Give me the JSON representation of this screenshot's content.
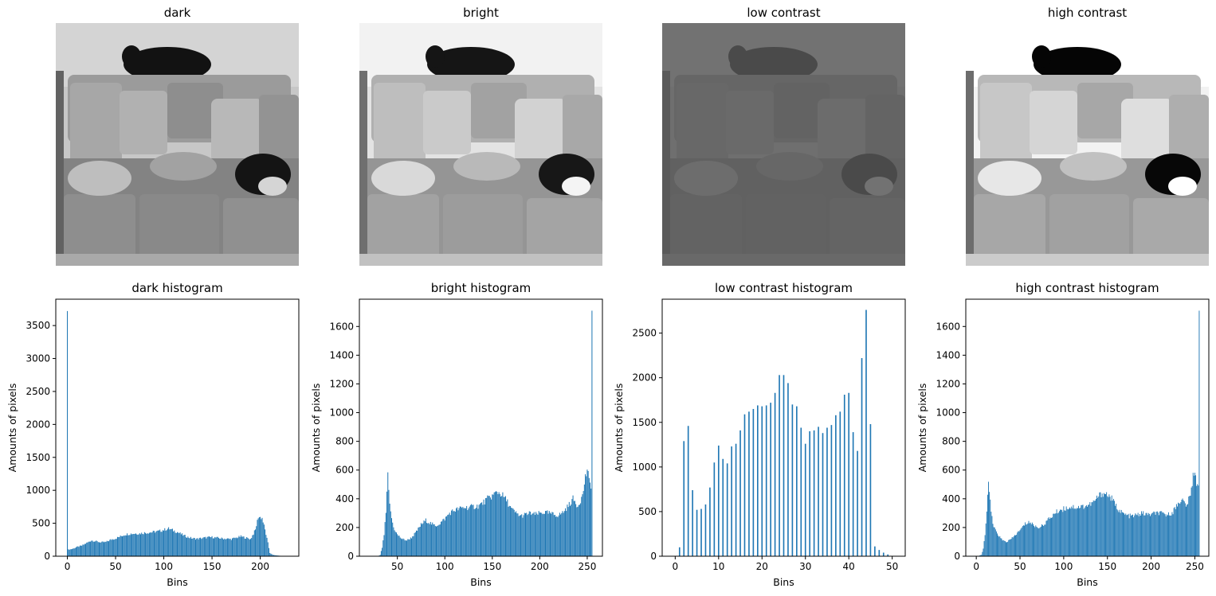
{
  "chart_data": [
    {
      "type": "image",
      "title": "dark",
      "tone": {
        "bright": 0.92,
        "contrast": 1.0
      }
    },
    {
      "type": "image",
      "title": "bright",
      "tone": {
        "bright": 1.05,
        "contrast": 1.0
      }
    },
    {
      "type": "image",
      "title": "low contrast",
      "tone": {
        "bright": 0.42,
        "contrast": 0.45
      }
    },
    {
      "type": "image",
      "title": "high contrast",
      "tone": {
        "bright": 1.05,
        "contrast": 1.15
      }
    },
    {
      "type": "bar",
      "title": "dark histogram",
      "xlabel": "Bins",
      "ylabel": "Amounts of pixels",
      "xlim": [
        -12,
        240
      ],
      "ylim": [
        0,
        3900
      ],
      "xticks": [
        0,
        50,
        100,
        150,
        200
      ],
      "yticks": [
        0,
        500,
        1000,
        1500,
        2000,
        2500,
        3000,
        3500
      ],
      "anchors": [
        [
          0,
          3720
        ],
        [
          1,
          100
        ],
        [
          5,
          110
        ],
        [
          10,
          140
        ],
        [
          15,
          160
        ],
        [
          20,
          200
        ],
        [
          25,
          240
        ],
        [
          30,
          225
        ],
        [
          35,
          210
        ],
        [
          40,
          215
        ],
        [
          45,
          250
        ],
        [
          50,
          270
        ],
        [
          55,
          300
        ],
        [
          60,
          330
        ],
        [
          65,
          340
        ],
        [
          70,
          345
        ],
        [
          75,
          345
        ],
        [
          80,
          355
        ],
        [
          85,
          360
        ],
        [
          90,
          370
        ],
        [
          95,
          380
        ],
        [
          100,
          400
        ],
        [
          105,
          420
        ],
        [
          110,
          390
        ],
        [
          115,
          360
        ],
        [
          120,
          320
        ],
        [
          125,
          290
        ],
        [
          130,
          270
        ],
        [
          135,
          265
        ],
        [
          140,
          275
        ],
        [
          145,
          285
        ],
        [
          150,
          290
        ],
        [
          155,
          280
        ],
        [
          160,
          270
        ],
        [
          165,
          265
        ],
        [
          170,
          260
        ],
        [
          175,
          280
        ],
        [
          180,
          300
        ],
        [
          185,
          280
        ],
        [
          190,
          260
        ],
        [
          195,
          400
        ],
        [
          198,
          600
        ],
        [
          202,
          580
        ],
        [
          205,
          400
        ],
        [
          208,
          200
        ],
        [
          210,
          50
        ],
        [
          213,
          20
        ],
        [
          218,
          10
        ],
        [
          222,
          5
        ],
        [
          225,
          0
        ]
      ],
      "xmax": 225
    },
    {
      "type": "bar",
      "title": "bright histogram",
      "xlabel": "Bins",
      "ylabel": "Amounts of pixels",
      "xlim": [
        10,
        266
      ],
      "ylim": [
        0,
        1790
      ],
      "xticks": [
        50,
        100,
        150,
        200,
        250
      ],
      "yticks": [
        0,
        200,
        400,
        600,
        800,
        1000,
        1200,
        1400,
        1600
      ],
      "anchors": [
        [
          30,
          0
        ],
        [
          32,
          10
        ],
        [
          34,
          60
        ],
        [
          36,
          150
        ],
        [
          38,
          300
        ],
        [
          40,
          560
        ],
        [
          41,
          450
        ],
        [
          43,
          300
        ],
        [
          46,
          200
        ],
        [
          50,
          150
        ],
        [
          55,
          120
        ],
        [
          60,
          110
        ],
        [
          65,
          130
        ],
        [
          70,
          170
        ],
        [
          75,
          220
        ],
        [
          80,
          250
        ],
        [
          85,
          230
        ],
        [
          90,
          210
        ],
        [
          95,
          230
        ],
        [
          100,
          260
        ],
        [
          105,
          300
        ],
        [
          110,
          320
        ],
        [
          115,
          330
        ],
        [
          120,
          340
        ],
        [
          125,
          340
        ],
        [
          130,
          345
        ],
        [
          135,
          350
        ],
        [
          140,
          370
        ],
        [
          145,
          400
        ],
        [
          150,
          420
        ],
        [
          155,
          450
        ],
        [
          160,
          430
        ],
        [
          165,
          390
        ],
        [
          170,
          330
        ],
        [
          175,
          300
        ],
        [
          180,
          280
        ],
        [
          185,
          290
        ],
        [
          190,
          300
        ],
        [
          195,
          290
        ],
        [
          200,
          300
        ],
        [
          205,
          305
        ],
        [
          210,
          300
        ],
        [
          215,
          290
        ],
        [
          220,
          285
        ],
        [
          225,
          310
        ],
        [
          230,
          350
        ],
        [
          235,
          400
        ],
        [
          240,
          350
        ],
        [
          245,
          420
        ],
        [
          248,
          550
        ],
        [
          250,
          600
        ],
        [
          252,
          520
        ],
        [
          254,
          500
        ],
        [
          255,
          1710
        ]
      ],
      "xmin": 30,
      "xmax": 255
    },
    {
      "type": "bar",
      "title": "low contrast histogram",
      "xlabel": "Bins",
      "ylabel": "Amounts of pixels",
      "xlim": [
        -3,
        53
      ],
      "ylim": [
        0,
        2880
      ],
      "xticks": [
        0,
        10,
        20,
        30,
        40,
        50
      ],
      "yticks": [
        0,
        500,
        1000,
        1500,
        2000,
        2500
      ],
      "bins": [
        0,
        1,
        2,
        3,
        4,
        5,
        6,
        7,
        8,
        9,
        10,
        11,
        12,
        13,
        14,
        15,
        16,
        17,
        18,
        19,
        20,
        21,
        22,
        23,
        24,
        25,
        26,
        27,
        28,
        29,
        30,
        31,
        32,
        33,
        34,
        35,
        36,
        37,
        38,
        39,
        40,
        41,
        42,
        43,
        44,
        45,
        46,
        47,
        48,
        49,
        50
      ],
      "values": [
        0,
        100,
        1290,
        1460,
        740,
        520,
        530,
        580,
        770,
        1050,
        1240,
        1090,
        1040,
        1230,
        1260,
        1410,
        1590,
        1620,
        1650,
        1690,
        1680,
        1690,
        1720,
        1830,
        2030,
        2030,
        1940,
        1700,
        1680,
        1440,
        1260,
        1400,
        1410,
        1450,
        1380,
        1440,
        1470,
        1580,
        1620,
        1810,
        1830,
        1390,
        1180,
        2220,
        2760,
        1480,
        110,
        70,
        40,
        20,
        0
      ]
    },
    {
      "type": "bar",
      "title": "high contrast histogram",
      "xlabel": "Bins",
      "ylabel": "Amounts of pixels",
      "xlim": [
        -12,
        266
      ],
      "ylim": [
        0,
        1790
      ],
      "xticks": [
        0,
        50,
        100,
        150,
        200,
        250
      ],
      "yticks": [
        0,
        200,
        400,
        600,
        800,
        1000,
        1200,
        1400,
        1600
      ],
      "anchors": [
        [
          0,
          0
        ],
        [
          3,
          3
        ],
        [
          6,
          10
        ],
        [
          8,
          50
        ],
        [
          10,
          150
        ],
        [
          12,
          300
        ],
        [
          14,
          550
        ],
        [
          15,
          450
        ],
        [
          17,
          300
        ],
        [
          20,
          200
        ],
        [
          25,
          150
        ],
        [
          30,
          110
        ],
        [
          35,
          100
        ],
        [
          40,
          120
        ],
        [
          45,
          150
        ],
        [
          50,
          180
        ],
        [
          55,
          220
        ],
        [
          60,
          240
        ],
        [
          65,
          220
        ],
        [
          70,
          200
        ],
        [
          75,
          210
        ],
        [
          80,
          240
        ],
        [
          85,
          270
        ],
        [
          90,
          300
        ],
        [
          95,
          320
        ],
        [
          100,
          330
        ],
        [
          105,
          340
        ],
        [
          110,
          345
        ],
        [
          115,
          340
        ],
        [
          120,
          345
        ],
        [
          125,
          350
        ],
        [
          130,
          360
        ],
        [
          135,
          380
        ],
        [
          140,
          420
        ],
        [
          145,
          440
        ],
        [
          150,
          430
        ],
        [
          155,
          400
        ],
        [
          160,
          350
        ],
        [
          165,
          310
        ],
        [
          170,
          290
        ],
        [
          175,
          280
        ],
        [
          180,
          280
        ],
        [
          185,
          290
        ],
        [
          190,
          300
        ],
        [
          195,
          290
        ],
        [
          200,
          290
        ],
        [
          205,
          300
        ],
        [
          210,
          300
        ],
        [
          215,
          290
        ],
        [
          220,
          290
        ],
        [
          225,
          310
        ],
        [
          230,
          360
        ],
        [
          235,
          400
        ],
        [
          240,
          350
        ],
        [
          245,
          420
        ],
        [
          248,
          560
        ],
        [
          250,
          600
        ],
        [
          252,
          520
        ],
        [
          254,
          500
        ],
        [
          255,
          1710
        ]
      ],
      "xmin": 0,
      "xmax": 255
    }
  ]
}
